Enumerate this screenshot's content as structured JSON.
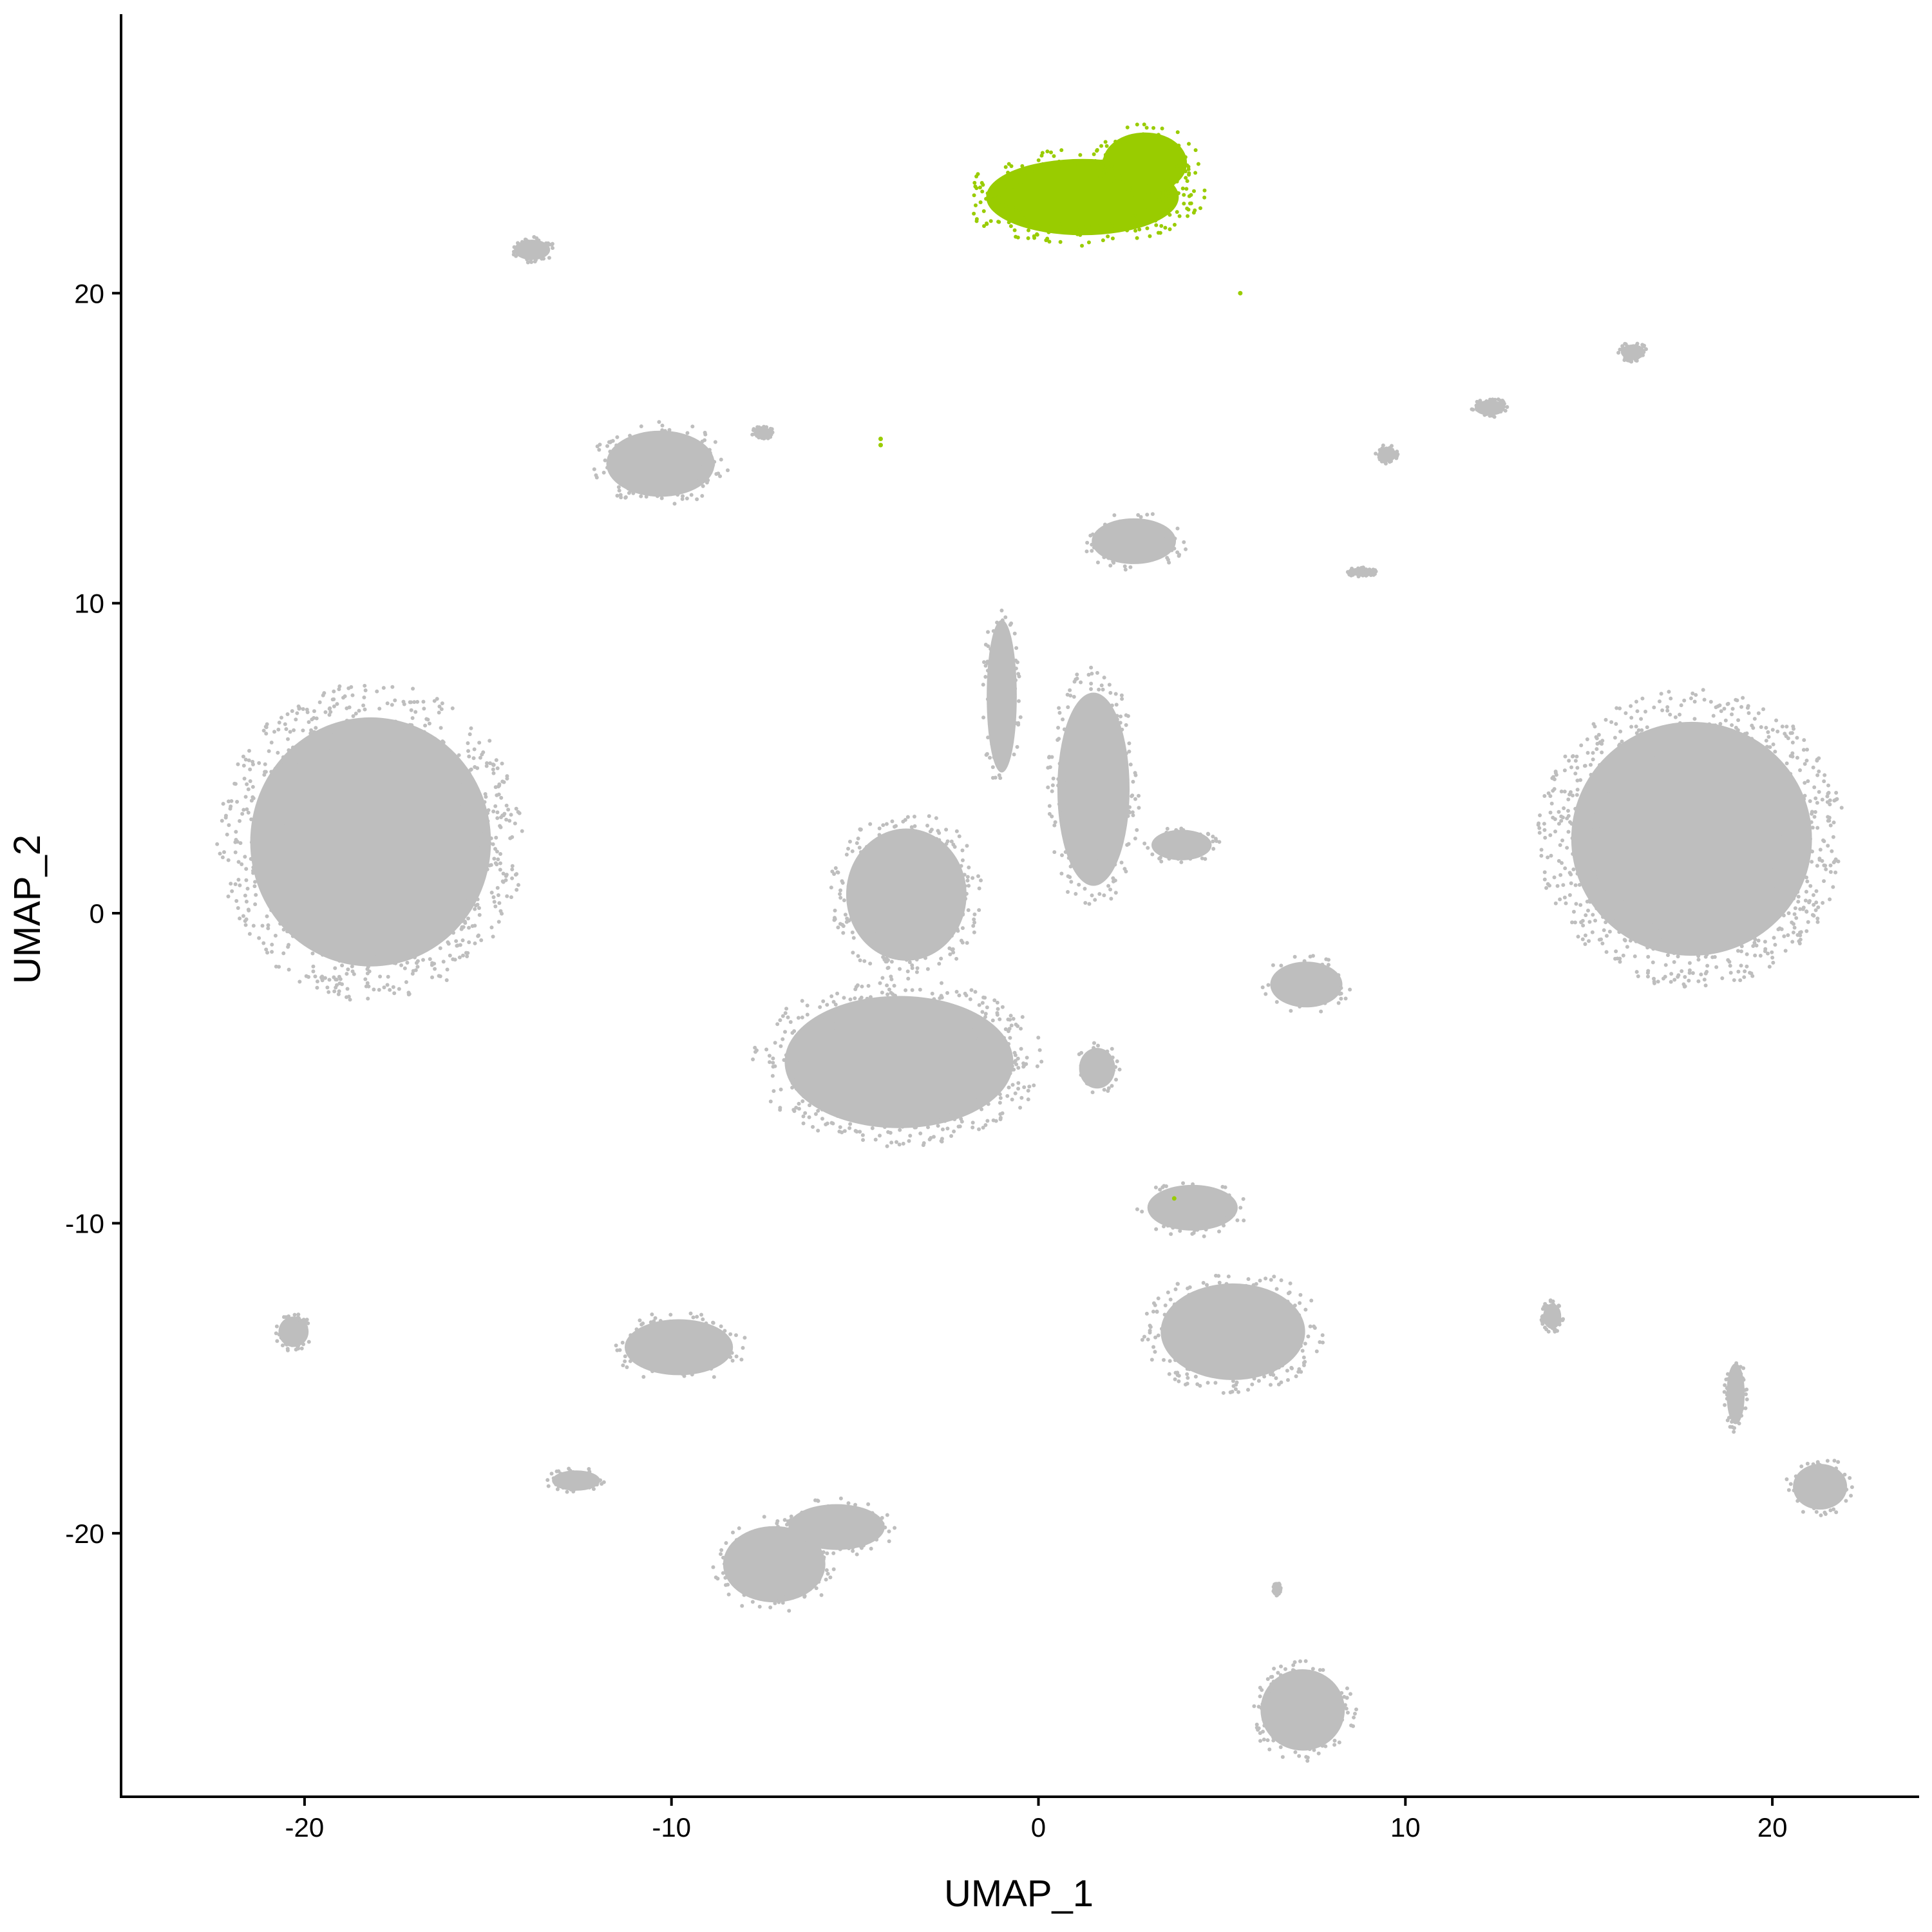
{
  "chart_data": {
    "type": "scatter",
    "title": "",
    "xlabel": "UMAP_1",
    "ylabel": "UMAP_2",
    "xlim": [
      -25,
      24
    ],
    "ylim": [
      -28.5,
      29
    ],
    "x_ticks": [
      -20,
      -10,
      0,
      10,
      20
    ],
    "y_ticks": [
      -20,
      -10,
      0,
      10,
      20
    ],
    "x_tick_labels": [
      "-20",
      "-10",
      "0",
      "10",
      "20"
    ],
    "y_tick_labels": [
      "-20",
      "-10",
      "0",
      "10",
      "20"
    ],
    "grid": false,
    "legend": "none",
    "colors": {
      "background_cells": "#bebebe",
      "highlighted_cells": "#99cc00"
    },
    "series": [
      {
        "color": "#bebebe",
        "clusters": [
          {
            "shape": "ellipse",
            "center": [
              -18.2,
              2.3
            ],
            "radius": [
              4.0,
              4.9
            ]
          },
          {
            "shape": "ellipse",
            "center": [
              17.8,
              2.4
            ],
            "radius": [
              4.0,
              4.6
            ]
          },
          {
            "shape": "ellipse",
            "center": [
              -3.8,
              -4.8
            ],
            "radius": [
              3.8,
              2.6
            ]
          },
          {
            "shape": "ellipse",
            "center": [
              -3.6,
              0.6
            ],
            "radius": [
              2.0,
              2.6
            ]
          },
          {
            "shape": "ellipse",
            "center": [
              -1.0,
              7.0
            ],
            "radius": [
              0.5,
              3.0
            ]
          },
          {
            "shape": "ellipse",
            "center": [
              1.5,
              4.0
            ],
            "radius": [
              1.2,
              3.8
            ]
          },
          {
            "shape": "ellipse",
            "center": [
              2.6,
              12.0
            ],
            "radius": [
              1.4,
              0.9
            ]
          },
          {
            "shape": "ellipse",
            "center": [
              -10.3,
              14.5
            ],
            "radius": [
              1.8,
              1.3
            ]
          },
          {
            "shape": "ellipse",
            "center": [
              -13.8,
              21.4
            ],
            "radius": [
              0.6,
              0.4
            ]
          },
          {
            "shape": "ellipse",
            "center": [
              3.9,
              2.2
            ],
            "radius": [
              1.0,
              0.6
            ]
          },
          {
            "shape": "ellipse",
            "center": [
              7.3,
              -2.3
            ],
            "radius": [
              1.2,
              0.9
            ]
          },
          {
            "shape": "ellipse",
            "center": [
              1.6,
              -5.0
            ],
            "radius": [
              0.6,
              0.8
            ]
          },
          {
            "shape": "ellipse",
            "center": [
              5.3,
              -13.5
            ],
            "radius": [
              2.4,
              1.9
            ]
          },
          {
            "shape": "ellipse",
            "center": [
              4.2,
              -9.5
            ],
            "radius": [
              1.5,
              0.9
            ]
          },
          {
            "shape": "ellipse",
            "center": [
              -9.8,
              -14.0
            ],
            "radius": [
              1.8,
              1.1
            ]
          },
          {
            "shape": "ellipse",
            "center": [
              -12.6,
              -18.3
            ],
            "radius": [
              0.8,
              0.4
            ]
          },
          {
            "shape": "ellipse",
            "center": [
              -7.2,
              -21.0
            ],
            "radius": [
              1.7,
              1.5
            ]
          },
          {
            "shape": "ellipse",
            "center": [
              -5.5,
              -19.8
            ],
            "radius": [
              1.6,
              0.9
            ]
          },
          {
            "shape": "ellipse",
            "center": [
              -20.3,
              -13.5
            ],
            "radius": [
              0.5,
              0.6
            ]
          },
          {
            "shape": "ellipse",
            "center": [
              7.2,
              -25.7
            ],
            "radius": [
              1.4,
              1.6
            ]
          },
          {
            "shape": "ellipse",
            "center": [
              21.3,
              -18.5
            ],
            "radius": [
              0.9,
              0.9
            ]
          },
          {
            "shape": "ellipse",
            "center": [
              16.2,
              18.1
            ],
            "radius": [
              0.4,
              0.3
            ]
          },
          {
            "shape": "ellipse",
            "center": [
              12.3,
              16.3
            ],
            "radius": [
              0.5,
              0.3
            ]
          },
          {
            "shape": "ellipse",
            "center": [
              9.5,
              14.8
            ],
            "radius": [
              0.3,
              0.3
            ]
          },
          {
            "shape": "ellipse",
            "center": [
              8.8,
              11.0
            ],
            "radius": [
              0.4,
              0.15
            ]
          },
          {
            "shape": "ellipse",
            "center": [
              14.0,
              -13.0
            ],
            "radius": [
              0.3,
              0.5
            ]
          },
          {
            "shape": "ellipse",
            "center": [
              19.0,
              -15.5
            ],
            "radius": [
              0.3,
              1.2
            ]
          },
          {
            "shape": "ellipse",
            "center": [
              -7.5,
              15.5
            ],
            "radius": [
              0.3,
              0.2
            ]
          },
          {
            "shape": "ellipse",
            "center": [
              6.5,
              -21.8
            ],
            "radius": [
              0.1,
              0.2
            ]
          }
        ]
      },
      {
        "color": "#99cc00",
        "clusters": [
          {
            "shape": "ellipse",
            "center": [
              1.2,
              23.1
            ],
            "radius": [
              3.2,
              1.5
            ]
          },
          {
            "shape": "ellipse",
            "center": [
              2.9,
              24.2
            ],
            "radius": [
              1.4,
              1.2
            ]
          }
        ],
        "points": [
          [
            5.5,
            20.0
          ],
          [
            -4.3,
            15.1
          ],
          [
            -4.3,
            15.3
          ],
          [
            3.7,
            -9.2
          ]
        ]
      }
    ]
  }
}
